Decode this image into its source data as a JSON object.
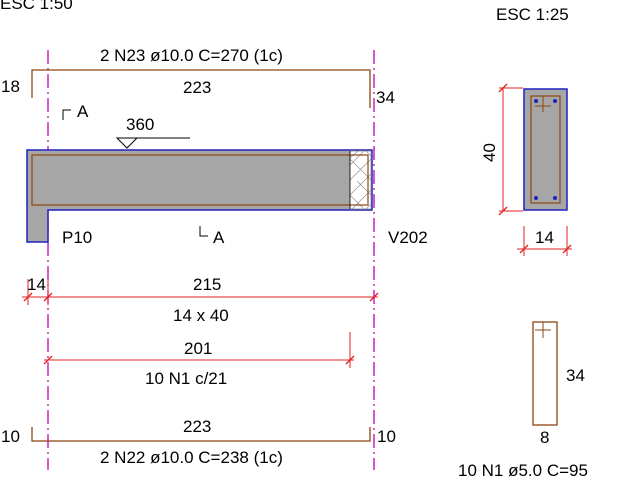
{
  "scales": {
    "left": "ESC 1:50",
    "right": "ESC 1:25"
  },
  "top_bar": {
    "label": "2 N23 ø10.0  C=270 (1c)",
    "length": "223",
    "left_hook": "18",
    "right_hook": "34"
  },
  "section_markers": {
    "top": "A",
    "bottom": "A"
  },
  "elevation": "360",
  "supports": {
    "left": "P10",
    "right": "V202"
  },
  "dims": {
    "left_support": "14",
    "span": "215",
    "section": "14 x 40"
  },
  "stirrup_dim": {
    "length": "201",
    "label": "10 N1 c/21"
  },
  "bottom_bar": {
    "length": "223",
    "left_hook": "10",
    "right_hook": "10",
    "label": "2 N22 ø10.0  C=238 (1c)"
  },
  "section_view": {
    "height": "40",
    "width": "14"
  },
  "stirrup_detail": {
    "height": "34",
    "width": "8",
    "label": "10 N1 ø5.0  C=95"
  },
  "colors": {
    "concrete": "#a6a6a6",
    "outline": "#2020c0",
    "bar": "#8b4513",
    "dimension": "#e02020",
    "axis": "#c000c0"
  }
}
